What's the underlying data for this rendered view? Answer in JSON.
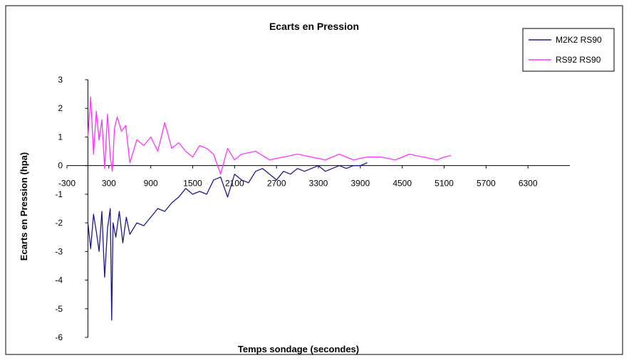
{
  "chart_data": {
    "type": "line",
    "title": "Ecarts en Pression",
    "xlabel": "Temps sondage (secondes)",
    "ylabel": "Ecarts en Pression (hpa)",
    "xlim": [
      -300,
      6900
    ],
    "ylim": [
      -6,
      3
    ],
    "x_ticks": [
      -300,
      300,
      900,
      1500,
      2100,
      2700,
      3300,
      3900,
      4500,
      5100,
      5700,
      6300
    ],
    "x_tick_labels": [
      "-300",
      "300",
      "900",
      "1500",
      "2100",
      "2700",
      "3300",
      "3900",
      "4500",
      "5100",
      "5700",
      "6300"
    ],
    "y_ticks": [
      3,
      2,
      1,
      0,
      -1,
      -2,
      -3,
      -4,
      -5,
      -6
    ],
    "y_tick_labels": [
      "3",
      "2",
      "1",
      "0",
      "-1",
      "-2",
      "-3",
      "-4",
      "-5",
      "-6"
    ],
    "grid": false,
    "legend_position": "top-right",
    "colors": {
      "M2K2 RS90": "#1a1a8c",
      "RS92 RS90": "#ff33ff",
      "axis": "#000000"
    },
    "series": [
      {
        "name": "M2K2 RS90",
        "color": "#1a1a8c",
        "x": [
          0,
          40,
          80,
          120,
          160,
          200,
          240,
          280,
          320,
          340,
          360,
          400,
          450,
          500,
          550,
          600,
          700,
          800,
          900,
          1000,
          1100,
          1200,
          1300,
          1400,
          1500,
          1600,
          1700,
          1800,
          1900,
          2000,
          2100,
          2200,
          2300,
          2400,
          2500,
          2600,
          2700,
          2800,
          2900,
          3000,
          3100,
          3200,
          3300,
          3400,
          3500,
          3600,
          3700,
          3800,
          3900,
          4000
        ],
        "y": [
          -2.0,
          -2.9,
          -1.7,
          -2.3,
          -3.0,
          -1.6,
          -3.9,
          -2.2,
          -1.5,
          -5.4,
          -2.0,
          -2.5,
          -1.6,
          -2.7,
          -1.8,
          -2.4,
          -2.0,
          -2.1,
          -1.8,
          -1.5,
          -1.6,
          -1.3,
          -1.1,
          -0.8,
          -1.0,
          -0.9,
          -1.0,
          -0.5,
          -0.4,
          -1.1,
          -0.3,
          -0.5,
          -0.6,
          -0.2,
          -0.1,
          -0.3,
          -0.5,
          -0.2,
          -0.3,
          -0.1,
          -0.2,
          -0.1,
          0.0,
          -0.2,
          -0.1,
          0.0,
          -0.1,
          0.0,
          0.0,
          0.1
        ]
      },
      {
        "name": "RS92 RS90",
        "color": "#ff33ff",
        "x": [
          0,
          40,
          80,
          120,
          160,
          200,
          240,
          280,
          320,
          350,
          380,
          420,
          480,
          540,
          600,
          700,
          800,
          900,
          1000,
          1100,
          1200,
          1300,
          1400,
          1500,
          1600,
          1700,
          1800,
          1900,
          2000,
          2100,
          2200,
          2400,
          2600,
          2800,
          3000,
          3200,
          3400,
          3600,
          3800,
          4000,
          4200,
          4400,
          4600,
          4800,
          5000,
          5100,
          5200
        ],
        "y": [
          1.0,
          2.4,
          0.4,
          1.9,
          0.9,
          1.6,
          -0.1,
          1.8,
          0.3,
          -0.2,
          1.3,
          1.7,
          1.2,
          1.4,
          0.1,
          0.9,
          0.7,
          1.0,
          0.5,
          1.5,
          0.6,
          0.8,
          0.5,
          0.3,
          0.7,
          0.6,
          0.4,
          -0.3,
          0.6,
          0.2,
          0.4,
          0.5,
          0.2,
          0.3,
          0.4,
          0.3,
          0.2,
          0.4,
          0.2,
          0.3,
          0.3,
          0.2,
          0.4,
          0.3,
          0.2,
          0.3,
          0.35
        ]
      }
    ]
  }
}
